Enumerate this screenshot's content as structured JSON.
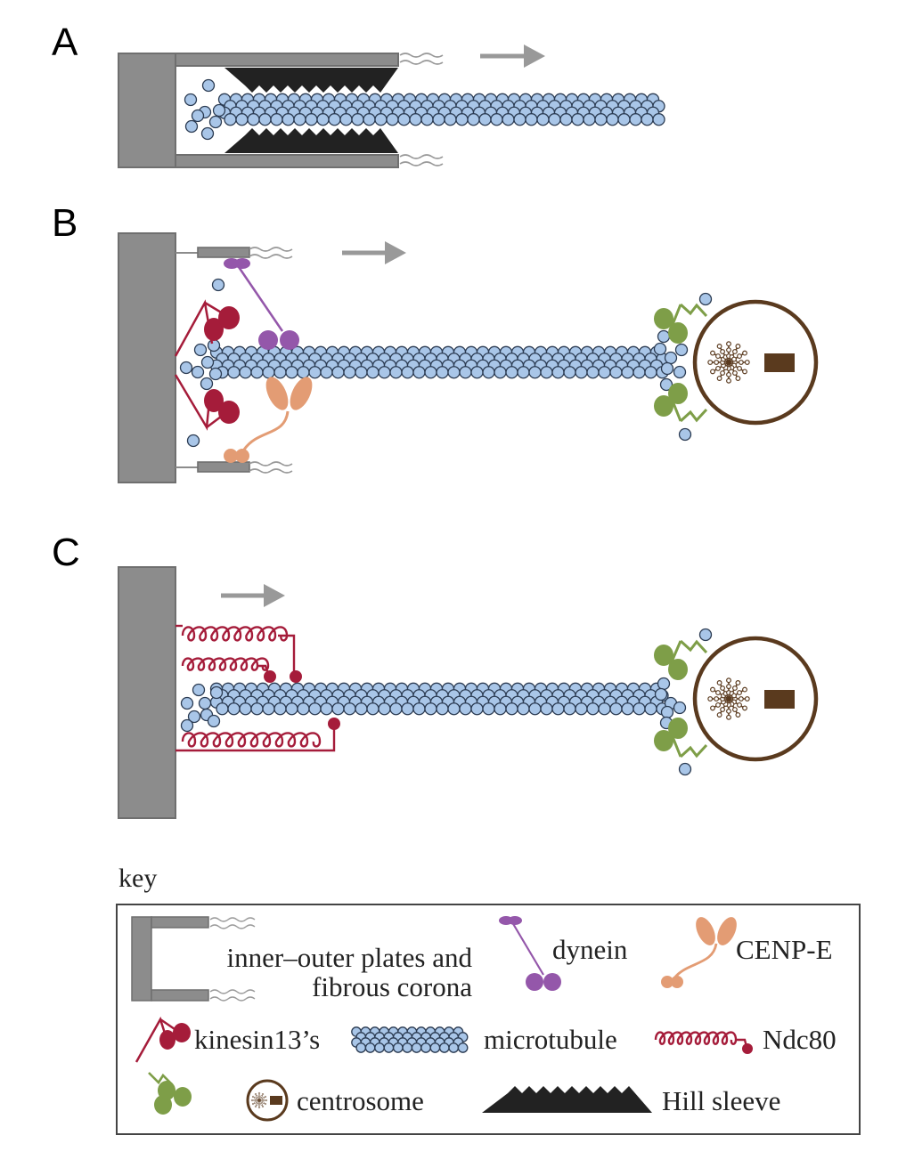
{
  "panels": [
    {
      "id": "A",
      "label": "A"
    },
    {
      "id": "B",
      "label": "B"
    },
    {
      "id": "C",
      "label": "C"
    }
  ],
  "key": {
    "title": "key",
    "items": {
      "plates_line1": "inner–outer plates and",
      "plates_line2": "fibrous corona",
      "dynein": "dynein",
      "cenpe": "CENP-E",
      "kinesin13": "kinesin13’s",
      "microtubule": "microtubule",
      "ndc80": "Ndc80",
      "centrosome": "centrosome",
      "hill_sleeve": "Hill sleeve"
    }
  },
  "colors": {
    "plate": "#8c8c8c",
    "plate_edge": "#707070",
    "tubulin_fill": "#a9c6e8",
    "tubulin_edge": "#2b3b52",
    "arrow": "#999999",
    "sleeve": "#222222",
    "dynein": "#9457aa",
    "cenpe": "#e39c74",
    "kinesin13": "#a51c3a",
    "ndc80": "#a51c3a",
    "green_protein": "#7e9e48",
    "centrosome_ring": "#5a3a1e",
    "centriole": "#5a3a1e"
  },
  "icons": [
    "kinetochore-plate-icon",
    "dynein-icon",
    "cenpe-icon",
    "kinesin13-icon",
    "microtubule-icon",
    "ndc80-icon",
    "green-depolymerase-icon",
    "centrosome-icon",
    "hill-sleeve-icon"
  ]
}
